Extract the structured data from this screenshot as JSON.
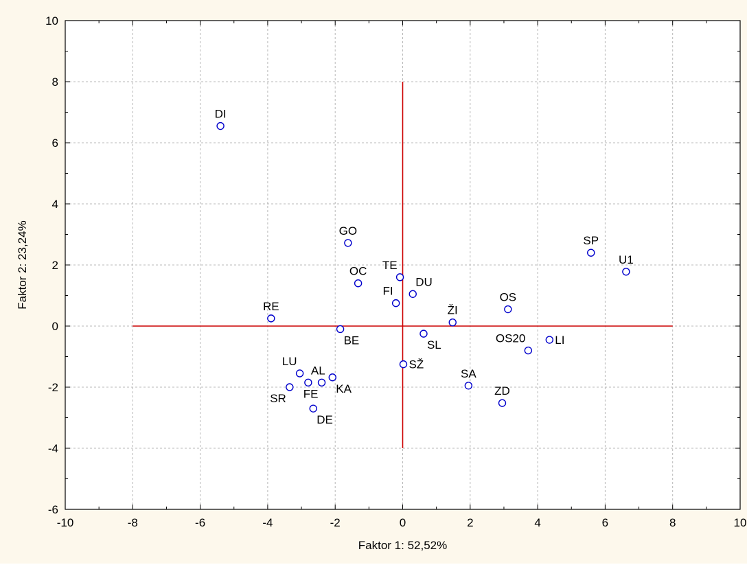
{
  "chart_data": {
    "type": "scatter",
    "title": "",
    "xlabel": "Faktor 1: 52,52%",
    "ylabel": "Faktor 2: 23,24%",
    "xlim": [
      -10,
      10
    ],
    "ylim": [
      -6,
      10
    ],
    "xticks": [
      -10,
      -8,
      -6,
      -4,
      -2,
      0,
      2,
      4,
      6,
      8,
      10
    ],
    "yticks": [
      -6,
      -4,
      -2,
      0,
      2,
      4,
      6,
      8,
      10
    ],
    "grid": true,
    "reference_lines": {
      "horizontal": {
        "y": 0,
        "x_from": -8,
        "x_to": 8
      },
      "vertical": {
        "x": 0,
        "y_from": -4,
        "y_to": 8
      }
    },
    "colors": {
      "background": "#fdf8ec",
      "plot_background": "#ffffff",
      "marker": "#0000cc",
      "reference_line": "#cc0000",
      "grid": "#b8b8b8"
    },
    "points": [
      {
        "label": "DI",
        "x": -5.4,
        "y": 6.55,
        "label_pos": "above"
      },
      {
        "label": "GO",
        "x": -1.62,
        "y": 2.72,
        "label_pos": "above"
      },
      {
        "label": "TE",
        "x": -0.08,
        "y": 1.6,
        "label_pos": "above-left"
      },
      {
        "label": "OC",
        "x": -1.32,
        "y": 1.4,
        "label_pos": "above"
      },
      {
        "label": "DU",
        "x": 0.3,
        "y": 1.05,
        "label_pos": "above-right"
      },
      {
        "label": "FI",
        "x": -0.2,
        "y": 0.75,
        "label_pos": "above-left"
      },
      {
        "label": "RE",
        "x": -3.9,
        "y": 0.25,
        "label_pos": "above"
      },
      {
        "label": "ŽI",
        "x": 1.48,
        "y": 0.12,
        "label_pos": "above"
      },
      {
        "label": "OS",
        "x": 3.12,
        "y": 0.55,
        "label_pos": "above"
      },
      {
        "label": "SP",
        "x": 5.58,
        "y": 2.4,
        "label_pos": "above"
      },
      {
        "label": "U1",
        "x": 6.62,
        "y": 1.78,
        "label_pos": "above"
      },
      {
        "label": "BE",
        "x": -1.85,
        "y": -0.1,
        "label_pos": "below-right"
      },
      {
        "label": "SL",
        "x": 0.62,
        "y": -0.25,
        "label_pos": "below-right"
      },
      {
        "label": "LI",
        "x": 4.35,
        "y": -0.45,
        "label_pos": "right"
      },
      {
        "label": "OS20",
        "x": 3.72,
        "y": -0.8,
        "label_pos": "above-left"
      },
      {
        "label": "SŽ",
        "x": 0.02,
        "y": -1.25,
        "label_pos": "right"
      },
      {
        "label": "LU",
        "x": -3.05,
        "y": -1.55,
        "label_pos": "above-left"
      },
      {
        "label": "AL",
        "x": -2.8,
        "y": -1.85,
        "label_pos": "above-right"
      },
      {
        "label": "KA",
        "x": -2.08,
        "y": -1.68,
        "label_pos": "below-right"
      },
      {
        "label": "FE",
        "x": -2.4,
        "y": -1.85,
        "label_pos": "below-left"
      },
      {
        "label": "SR",
        "x": -3.35,
        "y": -2.0,
        "label_pos": "below-left"
      },
      {
        "label": "DE",
        "x": -2.65,
        "y": -2.7,
        "label_pos": "below-right"
      },
      {
        "label": "SA",
        "x": 1.95,
        "y": -1.95,
        "label_pos": "above"
      },
      {
        "label": "ZD",
        "x": 2.95,
        "y": -2.52,
        "label_pos": "above"
      }
    ]
  }
}
